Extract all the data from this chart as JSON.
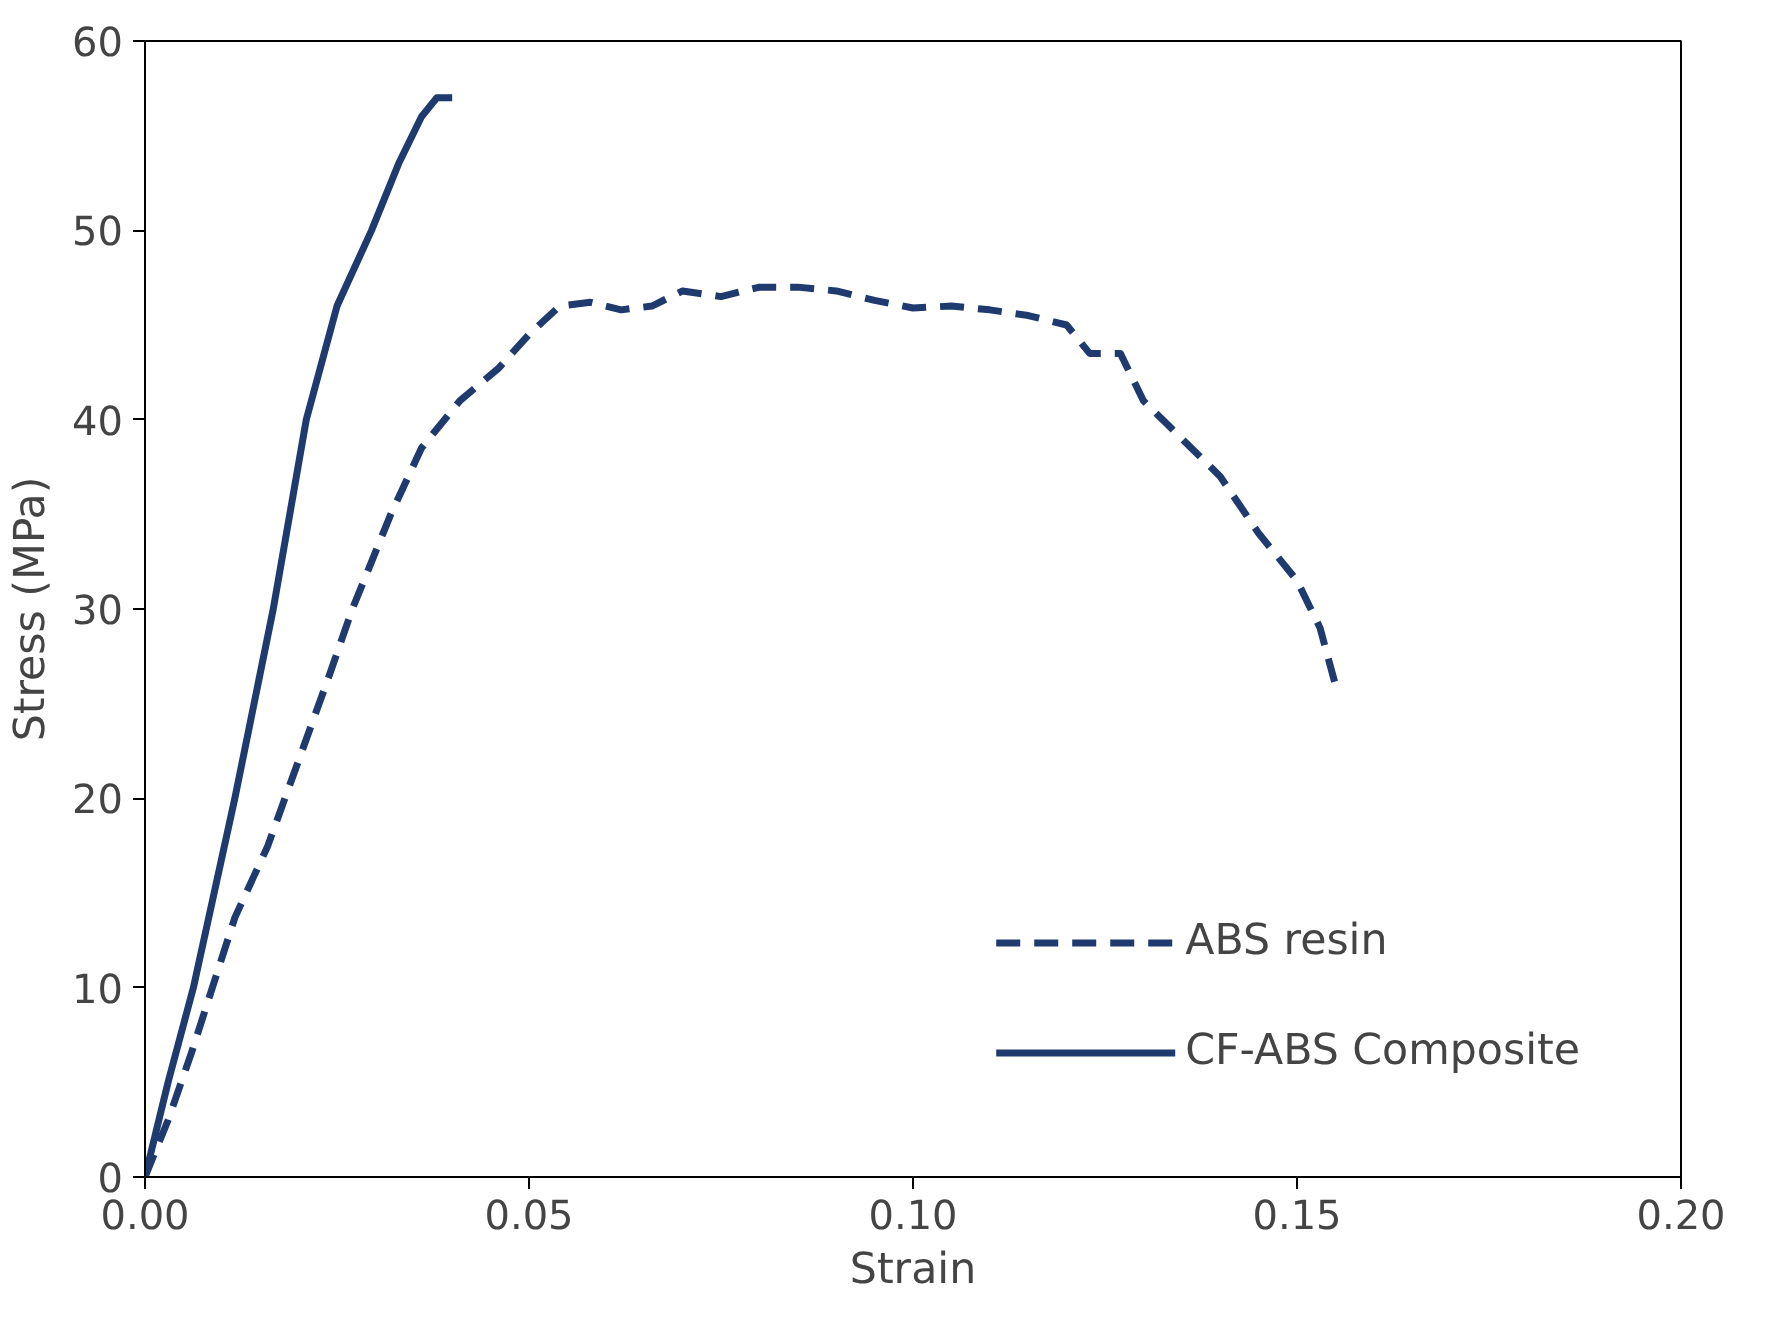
{
  "chart_data": {
    "type": "line",
    "xlabel": "Strain",
    "ylabel": "Stress (MPa)",
    "xlim": [
      0,
      0.2
    ],
    "ylim": [
      0,
      60
    ],
    "xticks": [
      {
        "value": 0,
        "label": "0.00"
      },
      {
        "value": 0.05,
        "label": "0.05"
      },
      {
        "value": 0.1,
        "label": "0.10"
      },
      {
        "value": 0.15,
        "label": "0.15"
      },
      {
        "value": 0.2,
        "label": "0.20"
      }
    ],
    "yticks": [
      0,
      10,
      20,
      30,
      40,
      50,
      60
    ],
    "grid": false,
    "legend": "bottom right",
    "marker": "none",
    "series": [
      {
        "name": "ABS resin",
        "color": "#1f3a6e",
        "line_style": "dashed",
        "x": [
          0,
          0.003,
          0.006,
          0.0117,
          0.016,
          0.02,
          0.024,
          0.027,
          0.032,
          0.036,
          0.041,
          0.046,
          0.05,
          0.054,
          0.058,
          0.062,
          0.066,
          0.07,
          0.075,
          0.08,
          0.085,
          0.09,
          0.095,
          0.1,
          0.105,
          0.11,
          0.115,
          0.12,
          0.123,
          0.127,
          0.13,
          0.135,
          0.14,
          0.145,
          0.15,
          0.153,
          0.155
        ],
        "values": [
          0,
          3,
          6.5,
          13.7,
          17.5,
          22,
          26.5,
          30,
          35,
          38.5,
          41,
          42.7,
          44.5,
          46,
          46.2,
          45.8,
          46,
          46.8,
          46.5,
          47,
          47,
          46.8,
          46.3,
          45.9,
          46,
          45.8,
          45.5,
          45,
          43.5,
          43.5,
          41,
          39,
          37,
          34,
          31.5,
          29,
          26
        ]
      },
      {
        "name": "CF-ABS Composite",
        "color": "#1f3a6e",
        "line_style": "solid",
        "x": [
          0,
          0.003,
          0.0063,
          0.0117,
          0.0167,
          0.021,
          0.025,
          0.0295,
          0.033,
          0.036,
          0.038,
          0.04
        ],
        "values": [
          0,
          5,
          10,
          20,
          30,
          40,
          46,
          50,
          53.5,
          56,
          57,
          57
        ]
      }
    ]
  }
}
